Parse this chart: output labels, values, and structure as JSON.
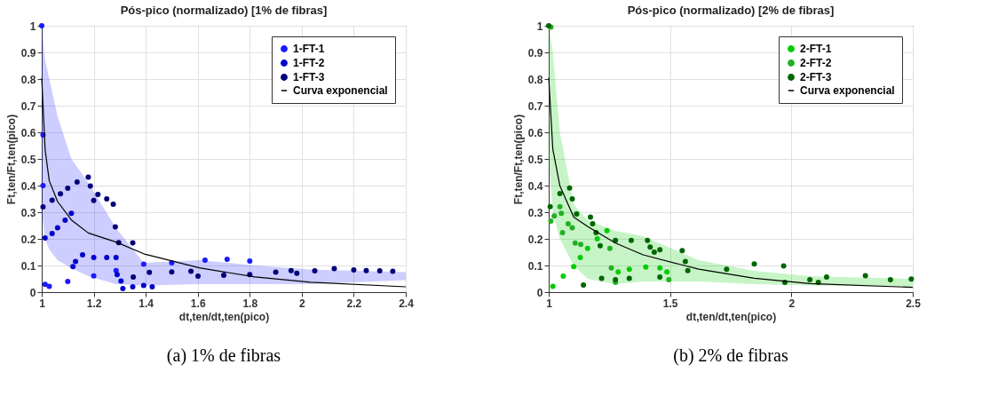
{
  "chart_data": [
    {
      "type": "scatter",
      "title": "Pós-pico (normalizado) [1% de fibras]",
      "xlabel": "dt,ten/dt,ten(pico)",
      "ylabel": "Ft,ten/Ft,ten(pico)",
      "xlim": [
        1,
        2.4
      ],
      "xticks": [
        1,
        1.2,
        1.4,
        1.6,
        1.8,
        2,
        2.2,
        2.4
      ],
      "ylim": [
        0,
        1
      ],
      "yticks": [
        0,
        0.1,
        0.2,
        0.3,
        0.4,
        0.5,
        0.6,
        0.7,
        0.8,
        0.9,
        1
      ],
      "grid": true,
      "legend": "top right",
      "line_style": "solid",
      "annotations": [
        "(a) 1% de fibras"
      ],
      "series": [
        {
          "name": "1-FT-1",
          "color": "#1a1aff",
          "marker": "circle",
          "x": [
            1,
            1.005,
            1.005,
            1.013,
            1.029,
            1.1,
            1.2,
            1.286,
            1.392,
            1.5,
            1.628,
            1.713,
            1.8
          ],
          "values": [
            1,
            0.59,
            0.4,
            0.029,
            0.022,
            0.04,
            0.061,
            0.081,
            0.105,
            0.11,
            0.12,
            0.123,
            0.117
          ]
        },
        {
          "name": "1-FT-2",
          "color": "#0000cc",
          "marker": "circle",
          "x": [
            1.013,
            1.04,
            1.061,
            1.09,
            1.114,
            1.12,
            1.13,
            1.157,
            1.2,
            1.25,
            1.286,
            1.29,
            1.305,
            1.312,
            1.35,
            1.392,
            1.425
          ],
          "values": [
            0.203,
            0.22,
            0.242,
            0.27,
            0.296,
            0.096,
            0.115,
            0.14,
            0.13,
            0.13,
            0.13,
            0.066,
            0.042,
            0.013,
            0.02,
            0.025,
            0.02
          ]
        },
        {
          "name": "1-FT-3",
          "color": "#00007a",
          "marker": "circle",
          "x": [
            1.005,
            1.04,
            1.072,
            1.1,
            1.136,
            1.179,
            1.187,
            1.2,
            1.216,
            1.25,
            1.275,
            1.283,
            1.296,
            1.35,
            1.352,
            1.414,
            1.5,
            1.574,
            1.601,
            1.7,
            1.8,
            1.9,
            1.959,
            1.981,
            2.05,
            2.125,
            2.2,
            2.248,
            2.3,
            2.35
          ],
          "values": [
            0.32,
            0.345,
            0.369,
            0.39,
            0.413,
            0.432,
            0.398,
            0.344,
            0.367,
            0.35,
            0.33,
            0.245,
            0.186,
            0.185,
            0.057,
            0.074,
            0.076,
            0.078,
            0.06,
            0.063,
            0.066,
            0.075,
            0.081,
            0.071,
            0.08,
            0.088,
            0.083,
            0.081,
            0.08,
            0.078
          ]
        },
        {
          "name": "Curva exponencial",
          "type": "line",
          "color": "#000000",
          "x": [
            1,
            1.013,
            1.029,
            1.061,
            1.114,
            1.179,
            1.286,
            1.392,
            1.606,
            1.82,
            2.034,
            2.4
          ],
          "values": [
            0.803,
            0.535,
            0.418,
            0.34,
            0.271,
            0.222,
            0.188,
            0.144,
            0.091,
            0.057,
            0.037,
            0.02
          ],
          "lower": [
            0.3,
            0.2,
            0.16,
            0.12,
            0.09,
            0.06,
            0.03,
            0.025,
            0.03,
            0.03,
            0.03,
            0.045
          ],
          "upper": [
            1,
            0.87,
            0.8,
            0.66,
            0.5,
            0.41,
            0.24,
            0.11,
            0.12,
            0.1,
            0.085,
            0.075
          ]
        }
      ]
    },
    {
      "type": "scatter",
      "title": "Pós-pico (normalizado) [2% de fibras]",
      "xlabel": "dt,ten/dt,ten(pico)",
      "ylabel": "Ft,ten/Ft,ten(pico)",
      "xlim": [
        1,
        2.5
      ],
      "xticks": [
        1,
        1.5,
        2,
        2.5
      ],
      "ylim": [
        0,
        1
      ],
      "yticks": [
        0,
        0.1,
        0.2,
        0.3,
        0.4,
        0.5,
        0.6,
        0.7,
        0.8,
        0.9,
        1
      ],
      "grid": true,
      "legend": "top right",
      "line_style": "solid",
      "annotations": [
        "(b) 2% de fibras"
      ],
      "series": [
        {
          "name": "2-FT-1",
          "color": "#00cc00",
          "marker": "circle",
          "x": [
            1.017,
            1.06,
            1.103,
            1.13,
            1.16,
            1.2,
            1.24,
            1.286,
            1.332,
            1.4,
            1.458,
            1.487
          ],
          "values": [
            0.022,
            0.06,
            0.096,
            0.13,
            0.164,
            0.2,
            0.231,
            0.076,
            0.086,
            0.094,
            0.091,
            0.076
          ]
        },
        {
          "name": "2-FT-2",
          "color": "#22b022",
          "marker": "circle",
          "x": [
            1.009,
            1.009,
            1.023,
            1.046,
            1.052,
            1.057,
            1.08,
            1.097,
            1.109,
            1.132,
            1.252,
            1.258,
            1.275,
            1.495
          ],
          "values": [
            0.995,
            0.267,
            0.286,
            0.321,
            0.296,
            0.223,
            0.257,
            0.242,
            0.184,
            0.179,
            0.164,
            0.091,
            0.037,
            0.047
          ]
        },
        {
          "name": "2-FT-3",
          "color": "#006600",
          "marker": "circle",
          "x": [
            1,
            1.006,
            1.046,
            1.086,
            1.097,
            1.115,
            1.172,
            1.181,
            1.195,
            1.212,
            1.275,
            1.34,
            1.407,
            1.418,
            1.435,
            1.458,
            1.55,
            1.563,
            1.573,
            1.733,
            1.847,
            1.968,
            1.973,
            2.076,
            2.111,
            2.145,
            2.305,
            2.408,
            2.494,
            1.143,
            1.218,
            1.275,
            1.332,
            1.458
          ],
          "values": [
            1,
            0.321,
            0.37,
            0.391,
            0.35,
            0.293,
            0.282,
            0.257,
            0.223,
            0.174,
            0.194,
            0.194,
            0.194,
            0.169,
            0.15,
            0.159,
            0.156,
            0.115,
            0.081,
            0.086,
            0.106,
            0.098,
            0.037,
            0.047,
            0.037,
            0.057,
            0.062,
            0.047,
            0.049,
            0.027,
            0.052,
            0.047,
            0.052,
            0.057
          ]
        },
        {
          "name": "Curva exponencial",
          "type": "line",
          "color": "#000000",
          "x": [
            1,
            1.017,
            1.046,
            1.103,
            1.16,
            1.275,
            1.389,
            1.618,
            1.847,
            2.076,
            2.5
          ],
          "values": [
            0.805,
            0.536,
            0.399,
            0.282,
            0.247,
            0.184,
            0.14,
            0.086,
            0.052,
            0.032,
            0.018
          ],
          "lower": [
            0.5,
            0.3,
            0.2,
            0.1,
            0.05,
            0.03,
            0.04,
            0.04,
            0.03,
            0.025,
            0.02
          ],
          "upper": [
            1,
            0.9,
            0.6,
            0.33,
            0.27,
            0.23,
            0.21,
            0.12,
            0.08,
            0.06,
            0.05
          ]
        }
      ]
    }
  ]
}
